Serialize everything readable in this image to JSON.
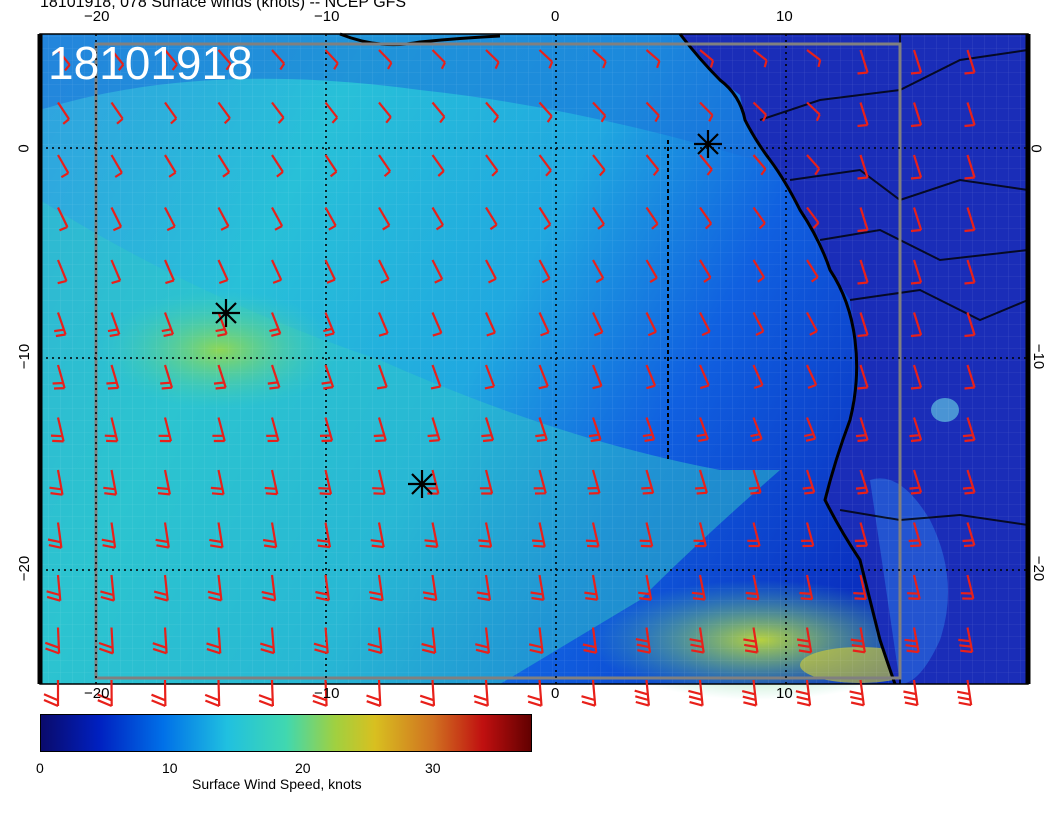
{
  "header": {
    "title": "18101918, 078 Surface winds (knots) -- NCEP GFS"
  },
  "map": {
    "stamp": "18101918",
    "lon_ticks_top": [
      "−20",
      "−10",
      "0",
      "10"
    ],
    "lon_ticks_bottom": [
      "−20",
      "−10",
      "0",
      "10"
    ],
    "lat_ticks_left": [
      "0",
      "−10",
      "−20"
    ],
    "lat_ticks_right": [
      "0",
      "−10",
      "−20"
    ],
    "colors": {
      "land": "#1a2db8",
      "ocean_low": "#1040d8",
      "ocean_mid": "#20a8e0",
      "ocean_high": "#30d0c0",
      "max_wind": "#a8d040",
      "barb": "#e8201a",
      "coast": "#000000"
    }
  },
  "colorbar": {
    "label": "Surface Wind Speed, knots",
    "ticks": [
      "0",
      "10",
      "20",
      "30"
    ],
    "stops": [
      "#0a0a6a",
      "#0020c0",
      "#0070e8",
      "#20c0e0",
      "#40d8b0",
      "#a0d040",
      "#d8c020",
      "#d07020",
      "#c01010",
      "#600000"
    ]
  }
}
